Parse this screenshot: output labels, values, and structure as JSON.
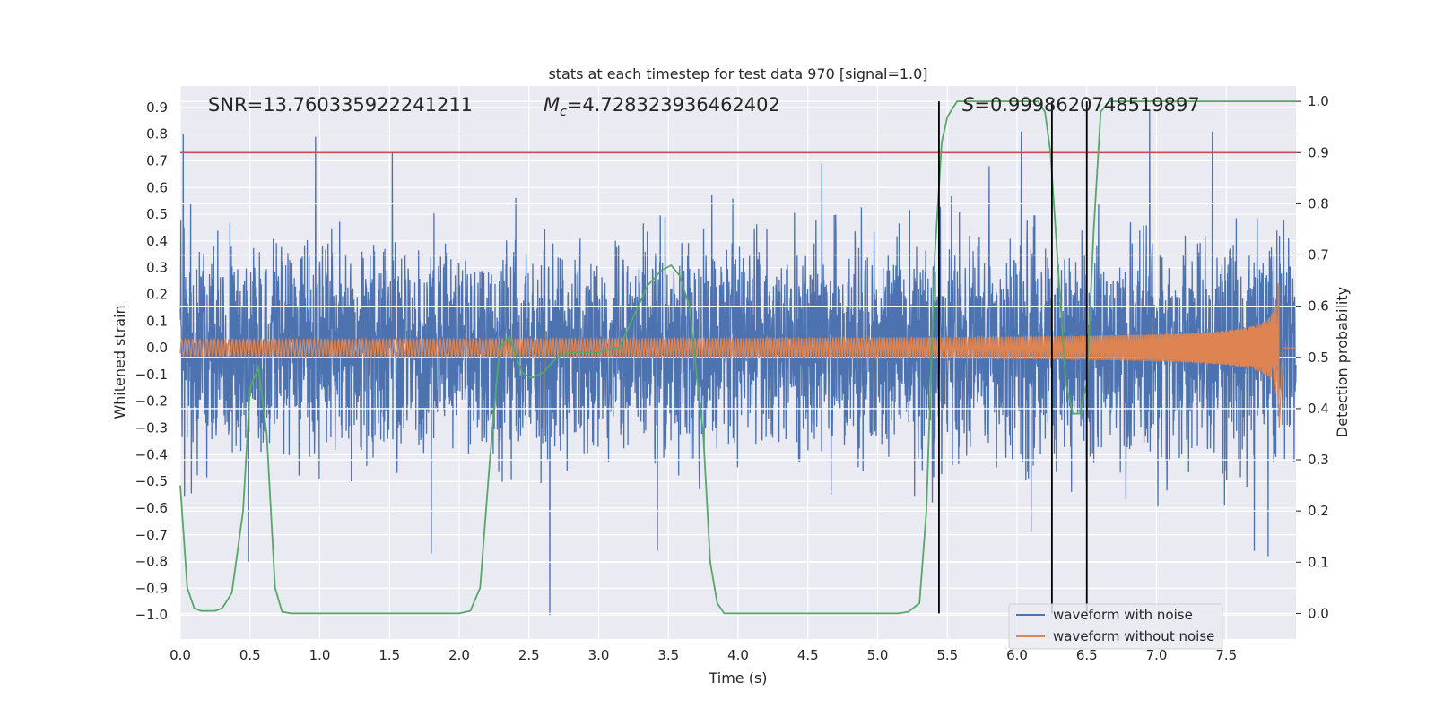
{
  "chart_data": {
    "type": "line",
    "title": "stats at each timestep for test data 970 [signal=1.0]",
    "xlabel": "Time (s)",
    "ylabel": "Whitened strain",
    "y2label": "Detection probability",
    "xlim": [
      0,
      8.0
    ],
    "ylim": [
      -1.09,
      0.98
    ],
    "y2lim": [
      -0.05,
      1.03
    ],
    "xticks": [
      "0.0",
      "0.5",
      "1.0",
      "1.5",
      "2.0",
      "2.5",
      "3.0",
      "3.5",
      "4.0",
      "4.5",
      "5.0",
      "5.5",
      "6.0",
      "6.5",
      "7.0",
      "7.5"
    ],
    "yticks": [
      "0.9",
      "0.8",
      "0.7",
      "0.6",
      "0.5",
      "0.4",
      "0.3",
      "0.2",
      "0.1",
      "0.0",
      "−0.1",
      "−0.2",
      "−0.3",
      "−0.4",
      "−0.5",
      "−0.6",
      "−0.7",
      "−0.8",
      "−0.9",
      "−1.0"
    ],
    "y2ticks": [
      "1.0",
      "0.9",
      "0.8",
      "0.7",
      "0.6",
      "0.5",
      "0.4",
      "0.3",
      "0.2",
      "0.1",
      "0.0"
    ],
    "annotations": {
      "snr": "SNR=13.760335922241211",
      "mc_symbol": "M",
      "mc_sub": "c",
      "mc_value": "=4.728323936462402",
      "s_symbol": "S",
      "s_value": "=0.9998620748519897"
    },
    "threshold": {
      "y2": 0.9,
      "color": "#c44e52"
    },
    "vlines": [
      5.44,
      6.25,
      6.5
    ],
    "series": [
      {
        "name": "waveform with noise",
        "color": "#4c72b0",
        "description": "noisy whitened strain, roughly -0.55..0.55 with spikes to 0.8 / -1.0",
        "spikes": [
          [
            0.02,
            0.8
          ],
          [
            0.97,
            0.79
          ],
          [
            1.52,
            0.73
          ],
          [
            4.6,
            0.69
          ],
          [
            5.8,
            0.68
          ],
          [
            6.03,
            0.81
          ],
          [
            6.95,
            0.89
          ],
          [
            7.4,
            0.81
          ],
          [
            0.49,
            -0.8
          ],
          [
            2.65,
            -1.0
          ],
          [
            1.8,
            -0.77
          ],
          [
            3.42,
            -0.76
          ],
          [
            7.7,
            -0.76
          ],
          [
            7.8,
            -0.78
          ],
          [
            6.1,
            -0.69
          ]
        ]
      },
      {
        "name": "waveform without noise",
        "color": "#dd8452",
        "description": "chirp, amplitude 0.02 rising to 0.27 at merger t=7.88",
        "amp_start": 0.02,
        "amp_end": 0.27,
        "merger_t": 7.88
      },
      {
        "name": "detection probability",
        "color": "#55a868",
        "axis": "y2",
        "points": [
          [
            0,
            0.25
          ],
          [
            0.05,
            0.05
          ],
          [
            0.1,
            0.01
          ],
          [
            0.15,
            0.005
          ],
          [
            0.25,
            0.005
          ],
          [
            0.3,
            0.01
          ],
          [
            0.37,
            0.04
          ],
          [
            0.45,
            0.2
          ],
          [
            0.5,
            0.44
          ],
          [
            0.56,
            0.48
          ],
          [
            0.62,
            0.35
          ],
          [
            0.68,
            0.05
          ],
          [
            0.73,
            0.003
          ],
          [
            0.8,
            0.0
          ],
          [
            1.5,
            0.0
          ],
          [
            2.0,
            0.0
          ],
          [
            2.08,
            0.005
          ],
          [
            2.15,
            0.05
          ],
          [
            2.22,
            0.3
          ],
          [
            2.29,
            0.52
          ],
          [
            2.36,
            0.54
          ],
          [
            2.45,
            0.47
          ],
          [
            2.52,
            0.46
          ],
          [
            2.6,
            0.47
          ],
          [
            2.7,
            0.5
          ],
          [
            2.8,
            0.51
          ],
          [
            3.0,
            0.51
          ],
          [
            3.15,
            0.52
          ],
          [
            3.25,
            0.58
          ],
          [
            3.35,
            0.64
          ],
          [
            3.45,
            0.67
          ],
          [
            3.52,
            0.68
          ],
          [
            3.58,
            0.66
          ],
          [
            3.65,
            0.6
          ],
          [
            3.75,
            0.35
          ],
          [
            3.8,
            0.1
          ],
          [
            3.85,
            0.02
          ],
          [
            3.9,
            0.0
          ],
          [
            5.15,
            0.0
          ],
          [
            5.22,
            0.003
          ],
          [
            5.3,
            0.02
          ],
          [
            5.35,
            0.2
          ],
          [
            5.41,
            0.7
          ],
          [
            5.46,
            0.92
          ],
          [
            5.5,
            0.97
          ],
          [
            5.57,
            1.0
          ],
          [
            6.15,
            1.0
          ],
          [
            6.2,
            0.98
          ],
          [
            6.24,
            0.9
          ],
          [
            6.3,
            0.65
          ],
          [
            6.35,
            0.45
          ],
          [
            6.4,
            0.39
          ],
          [
            6.45,
            0.39
          ],
          [
            6.5,
            0.45
          ],
          [
            6.55,
            0.75
          ],
          [
            6.6,
            0.98
          ],
          [
            6.66,
            1.0
          ],
          [
            8.0,
            1.0
          ]
        ]
      }
    ],
    "legend": {
      "placement": "lower-right",
      "entries": [
        "waveform with noise",
        "waveform without noise"
      ]
    }
  }
}
